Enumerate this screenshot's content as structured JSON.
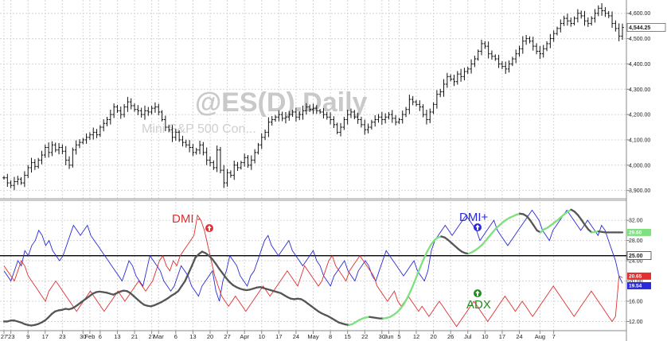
{
  "chart_data": [
    {
      "type": "ohlc",
      "watermark_symbol": "@ES(D),Daily",
      "watermark_name": "Mini S&P 500 Con...",
      "y_ticks": [
        "3,900.00",
        "4,000.00",
        "4,100.00",
        "4,200.00",
        "4,300.00",
        "4,400.00",
        "4,500.00",
        "4,600.00"
      ],
      "ylim": [
        3880,
        4640
      ],
      "last_value_label": "4,544.25",
      "last_value": 4544.25,
      "close": [
        3950,
        3930,
        3920,
        3935,
        3945,
        3930,
        3960,
        3990,
        4010,
        3995,
        4020,
        4040,
        4070,
        4050,
        4080,
        4060,
        4070,
        4055,
        4020,
        4000,
        4060,
        4080,
        4090,
        4100,
        4110,
        4120,
        4130,
        4120,
        4150,
        4165,
        4180,
        4200,
        4230,
        4215,
        4200,
        4230,
        4250,
        4235,
        4220,
        4215,
        4200,
        4215,
        4210,
        4225,
        4230,
        4210,
        4180,
        4150,
        4140,
        4110,
        4130,
        4100,
        4090,
        4080,
        4070,
        4050,
        4060,
        4080,
        4050,
        4020,
        4010,
        3990,
        4060,
        3980,
        3930,
        3970,
        3960,
        4000,
        3990,
        4010,
        4030,
        4000,
        4020,
        4050,
        4080,
        4110,
        4130,
        4170,
        4180,
        4190,
        4200,
        4185,
        4190,
        4200,
        4210,
        4190,
        4200,
        4215,
        4230,
        4220,
        4225,
        4215,
        4210,
        4200,
        4190,
        4180,
        4160,
        4130,
        4150,
        4180,
        4200,
        4210,
        4190,
        4180,
        4160,
        4140,
        4150,
        4170,
        4180,
        4190,
        4180,
        4190,
        4200,
        4185,
        4170,
        4180,
        4200,
        4220,
        4260,
        4250,
        4240,
        4230,
        4200,
        4180,
        4210,
        4240,
        4280,
        4290,
        4320,
        4350,
        4340,
        4330,
        4360,
        4350,
        4370,
        4380,
        4400,
        4420,
        4450,
        4480,
        4470,
        4440,
        4430,
        4420,
        4400,
        4390,
        4380,
        4400,
        4420,
        4440,
        4460,
        4490,
        4500,
        4490,
        4470,
        4450,
        4440,
        4460,
        4480,
        4500,
        4520,
        4540,
        4560,
        4580,
        4570,
        4560,
        4580,
        4600,
        4590,
        4570,
        4560,
        4580,
        4600,
        4620,
        4610,
        4600,
        4590,
        4560,
        4540,
        4510,
        4544
      ]
    },
    {
      "type": "line",
      "y_ticks": [
        "12.00",
        "16.00",
        "20.00",
        "24.00",
        "28.00",
        "32.00"
      ],
      "ylim": [
        10.5,
        35
      ],
      "reference_level_label": "25.00",
      "reference_level": 25,
      "value_labels": [
        {
          "text": "29.60",
          "value": 29.6,
          "color": "#7ee07e"
        },
        {
          "text": "20.65",
          "value": 20.65,
          "color": "#e03030"
        },
        {
          "text": "19.54",
          "value": 19.54,
          "color": "#2a2ad8"
        }
      ],
      "series": [
        {
          "name": "DMI+",
          "color": "#2a2ad8",
          "values": [
            22,
            21,
            20,
            22,
            24,
            23,
            26,
            25,
            27,
            28,
            30,
            29,
            27,
            28,
            26,
            25,
            24,
            25,
            27,
            29,
            31,
            30,
            29,
            30,
            31,
            29,
            28,
            27,
            26,
            25,
            24,
            23,
            22,
            21,
            20,
            22,
            24,
            23,
            21,
            20,
            19,
            22,
            25,
            24,
            23,
            22,
            20,
            19,
            18,
            19,
            21,
            23,
            22,
            21,
            19,
            18,
            17,
            19,
            20,
            21,
            22,
            18,
            16,
            20,
            22,
            25,
            24,
            23,
            21,
            20,
            19,
            21,
            22,
            24,
            26,
            28,
            29,
            27,
            26,
            25,
            26,
            27,
            28,
            26,
            25,
            24,
            23,
            24,
            25,
            26,
            24,
            23,
            21,
            20,
            19,
            21,
            22,
            23,
            24,
            22,
            21,
            20,
            22,
            23,
            24,
            23,
            21,
            20,
            22,
            24,
            26,
            25,
            24,
            23,
            22,
            21,
            22,
            23,
            24,
            22,
            21,
            20,
            22,
            26,
            28,
            29,
            30,
            31,
            30,
            29,
            30,
            31,
            32,
            33,
            32,
            31,
            30,
            28,
            29,
            30,
            31,
            32,
            30,
            29,
            28,
            27,
            28,
            29,
            30,
            31,
            32,
            33,
            34,
            33,
            32,
            30,
            29,
            28,
            30,
            31,
            32,
            33,
            34,
            33,
            32,
            31,
            30,
            31,
            32,
            31,
            30,
            29,
            31,
            30,
            28,
            26,
            24,
            21,
            19.54
          ]
        },
        {
          "name": "DMI -",
          "color": "#e03030",
          "values": [
            23,
            22,
            21,
            20,
            22,
            24,
            23,
            21,
            20,
            19,
            18,
            17,
            16,
            18,
            19,
            20,
            19,
            18,
            17,
            16,
            15,
            14,
            15,
            16,
            17,
            18,
            17,
            16,
            15,
            14,
            15,
            16,
            17,
            18,
            17,
            16,
            17,
            18,
            19,
            20,
            19,
            18,
            19,
            20,
            22,
            24,
            25,
            23,
            22,
            24,
            23,
            25,
            26,
            27,
            28,
            29,
            33,
            32,
            30,
            27,
            24,
            21,
            19,
            17,
            16,
            15,
            16,
            17,
            16,
            15,
            14,
            15,
            16,
            17,
            18,
            19,
            18,
            17,
            18,
            19,
            20,
            21,
            22,
            21,
            20,
            19,
            21,
            23,
            22,
            21,
            20,
            19,
            20,
            22,
            24,
            25,
            23,
            22,
            21,
            20,
            22,
            23,
            24,
            25,
            24,
            23,
            22,
            21,
            19,
            18,
            17,
            16,
            17,
            18,
            16,
            15,
            16,
            17,
            16,
            15,
            14,
            15,
            14,
            13,
            14,
            15,
            16,
            15,
            14,
            13,
            12,
            11,
            12,
            13,
            14,
            15,
            16,
            15,
            14,
            13,
            12,
            13,
            14,
            15,
            16,
            17,
            16,
            15,
            14,
            15,
            16,
            15,
            14,
            13,
            14,
            15,
            16,
            17,
            18,
            19,
            18,
            17,
            16,
            15,
            14,
            13,
            14,
            15,
            16,
            17,
            18,
            17,
            16,
            15,
            14,
            13,
            12,
            13,
            21,
            20.65
          ]
        },
        {
          "name": "ADX",
          "color": "#555555",
          "values": [
            12,
            12,
            12.2,
            12.2,
            12,
            11.8,
            11.5,
            11.3,
            11.2,
            11.3,
            11.5,
            11.8,
            12.2,
            12.8,
            13.5,
            14,
            14.2,
            14.3,
            14.5,
            14.4,
            14.6,
            15,
            15.5,
            16,
            16.5,
            17,
            17.5,
            17.8,
            17.9,
            17.8,
            17.7,
            17.5,
            17.3,
            17.6,
            17.9,
            18.1,
            18,
            17.6,
            17,
            16.4,
            15.8,
            15.3,
            15.1,
            15,
            15.2,
            15.5,
            15.8,
            16.2,
            16.6,
            17.1,
            17.5,
            18,
            19,
            20,
            21.5,
            23,
            24.6,
            25.3,
            25.8,
            25.5,
            25,
            24.3,
            23.4,
            22.4,
            21.5,
            20.6,
            19.8,
            19.2,
            18.8,
            18.5,
            18.3,
            18.2,
            18.3,
            18.5,
            18.7,
            18.8,
            18.6,
            18.4,
            18.2,
            18,
            17.8,
            17.6,
            17.2,
            16.8,
            16.5,
            16.4,
            16.5,
            16.4,
            16,
            15.5,
            15,
            14.5,
            14,
            13.6,
            13.3,
            13,
            12.6,
            12.2,
            11.8,
            11.6,
            11.4,
            11.3,
            11.5,
            11.9,
            12.3,
            12.6,
            12.8,
            12.9,
            12.8,
            12.7,
            12.6,
            12.6,
            12.7,
            12.9,
            13.3,
            13.8,
            14.5,
            15.4,
            16.6,
            18,
            19.6,
            21.3,
            23,
            24.6,
            26,
            27.2,
            28.1,
            28.6,
            28.8,
            28.6,
            28.1,
            27.5,
            26.9,
            26.3,
            25.8,
            25.5,
            25.4,
            25.7,
            26.1,
            26.6,
            27.2,
            28,
            28.8,
            29.6,
            30.4,
            31,
            31.6,
            32.1,
            32.5,
            32.8,
            33.1,
            33.3,
            33.2,
            32.8,
            32,
            31,
            30,
            29.6,
            30.2,
            30.5,
            31,
            31.5,
            32,
            32.6,
            33.2,
            33.7,
            34.1,
            33.7,
            33,
            32.1,
            31.1,
            30.2,
            29.6,
            29.7,
            29.8,
            29.7,
            29.6,
            29.6,
            29.6,
            29.6,
            29.6,
            29.6
          ]
        }
      ]
    }
  ],
  "x_axis_labels": [
    {
      "i": 0,
      "text": "27"
    },
    {
      "i": 2,
      "text": "'23"
    },
    {
      "i": 7,
      "text": "9"
    },
    {
      "i": 12,
      "text": "17"
    },
    {
      "i": 17,
      "text": "23"
    },
    {
      "i": 23,
      "text": "30"
    },
    {
      "i": 25,
      "text": "Feb"
    },
    {
      "i": 28,
      "text": "6"
    },
    {
      "i": 33,
      "text": "13"
    },
    {
      "i": 38,
      "text": "21"
    },
    {
      "i": 43,
      "text": "27"
    },
    {
      "i": 45,
      "text": "Mar"
    },
    {
      "i": 50,
      "text": "6"
    },
    {
      "i": 55,
      "text": "13"
    },
    {
      "i": 60,
      "text": "20"
    },
    {
      "i": 65,
      "text": "27"
    },
    {
      "i": 70,
      "text": "Apr"
    },
    {
      "i": 75,
      "text": "10"
    },
    {
      "i": 80,
      "text": "17"
    },
    {
      "i": 85,
      "text": "24"
    },
    {
      "i": 90,
      "text": "May"
    },
    {
      "i": 95,
      "text": "8"
    },
    {
      "i": 100,
      "text": "15"
    },
    {
      "i": 105,
      "text": "22"
    },
    {
      "i": 110,
      "text": "30"
    },
    {
      "i": 112,
      "text": "Jun"
    },
    {
      "i": 115,
      "text": "5"
    },
    {
      "i": 120,
      "text": "12"
    },
    {
      "i": 125,
      "text": "20"
    },
    {
      "i": 130,
      "text": "26"
    },
    {
      "i": 135,
      "text": "Jul"
    },
    {
      "i": 140,
      "text": "10"
    },
    {
      "i": 145,
      "text": "17"
    },
    {
      "i": 150,
      "text": "24"
    },
    {
      "i": 156,
      "text": "Aug"
    },
    {
      "i": 160,
      "text": "7"
    }
  ],
  "annotations": [
    {
      "text": "DMI -",
      "color": "#e03030"
    },
    {
      "text": "DMI+",
      "color": "#2a2ad8"
    },
    {
      "text": "ADX",
      "color": "#1e8c1e"
    }
  ]
}
